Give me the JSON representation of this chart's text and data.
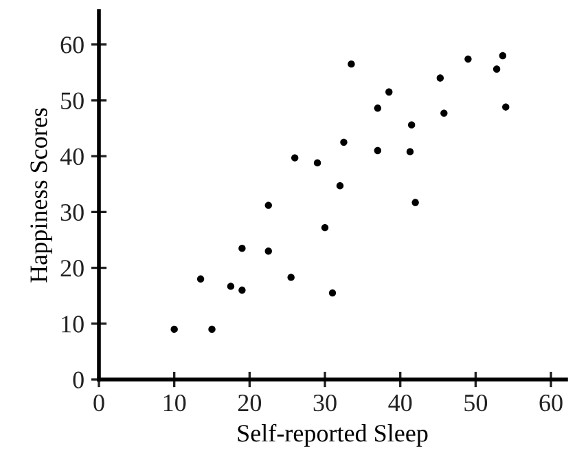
{
  "chart_data": {
    "type": "scatter",
    "xlabel": "Self-reported Sleep",
    "ylabel": "Happiness Scores",
    "x": [
      10,
      13.5,
      15,
      17.5,
      19,
      19,
      22.5,
      22.5,
      25.5,
      26,
      29,
      30,
      31,
      32,
      32.5,
      33.5,
      37,
      37,
      38.5,
      41.3,
      41.5,
      42,
      45.3,
      45.8,
      49,
      52.8,
      53.6,
      54
    ],
    "series": [
      {
        "color": "#000000",
        "values": [
          9,
          18,
          9,
          16.7,
          23.5,
          16,
          31.2,
          23,
          18.3,
          39.7,
          38.8,
          27.2,
          15.5,
          34.7,
          42.5,
          56.5,
          48.6,
          41,
          51.5,
          40.8,
          45.6,
          31.7,
          54,
          47.7,
          57.4,
          55.6,
          58,
          48.8
        ]
      }
    ],
    "xlim": [
      0,
      62
    ],
    "ylim": [
      0,
      66
    ],
    "xticks": [
      0,
      10,
      20,
      30,
      40,
      50,
      60
    ],
    "yticks": [
      0,
      10,
      20,
      30,
      40,
      50,
      60
    ],
    "marker": "circle",
    "grid": false,
    "legend": false
  }
}
